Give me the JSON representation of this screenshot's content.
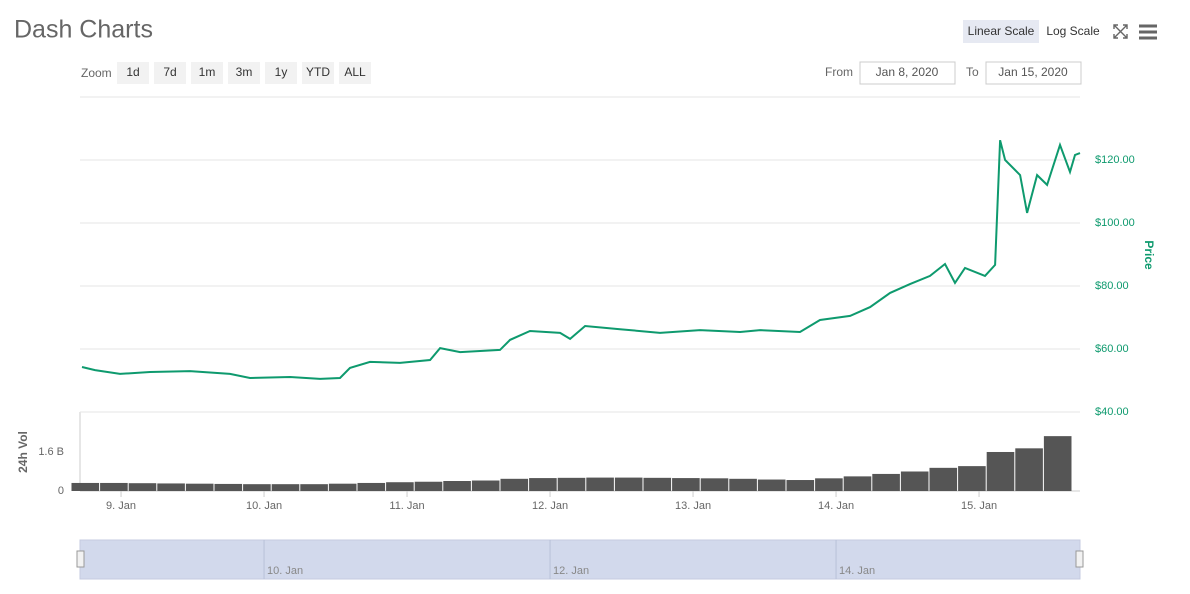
{
  "header": {
    "title": "Dash Charts",
    "scale_buttons": [
      "Linear Scale",
      "Log Scale"
    ]
  },
  "toolbar": {
    "zoom_label": "Zoom",
    "zoom_buttons": [
      "1d",
      "7d",
      "1m",
      "3m",
      "1y",
      "YTD",
      "ALL"
    ],
    "from_label": "From",
    "from_value": "Jan 8, 2020",
    "to_label": "To",
    "to_value": "Jan 15, 2020"
  },
  "chart_data": [
    {
      "type": "line",
      "y_label": "Price",
      "color": "#0e9a6e",
      "x": [
        8.727,
        8.818,
        8.993,
        9.203,
        9.482,
        9.762,
        9.902,
        10.182,
        10.392,
        10.531,
        10.601,
        10.741,
        10.951,
        11.161,
        11.231,
        11.371,
        11.65,
        11.72,
        11.86,
        12.07,
        12.14,
        12.245,
        12.489,
        12.769,
        13.049,
        13.329,
        13.469,
        13.748,
        13.888,
        14.098,
        14.238,
        14.378,
        14.517,
        14.657,
        14.762,
        14.832,
        14.902,
        15.042,
        15.112,
        15.147,
        15.182,
        15.287,
        15.336,
        15.406,
        15.476,
        15.566,
        15.636,
        15.671,
        15.706
      ],
      "values": [
        54.3,
        53.3,
        52.1,
        52.7,
        53,
        52.1,
        50.8,
        51.1,
        50.5,
        50.8,
        54,
        55.9,
        55.6,
        56.5,
        60.3,
        59,
        59.7,
        62.9,
        65.7,
        65.1,
        63.2,
        67.3,
        66.3,
        65.1,
        66,
        65.4,
        66,
        65.4,
        69.2,
        70.5,
        73.3,
        77.8,
        80.6,
        83.2,
        87,
        81,
        85.7,
        83.2,
        86.7,
        126.3,
        120,
        115.2,
        103.2,
        115.2,
        112.1,
        124.8,
        116.2,
        121.6,
        122.2
      ],
      "xlim": [
        8.713,
        15.706
      ],
      "ylim": [
        40,
        140
      ],
      "yticks": [
        {
          "value": 40,
          "label": "$40.00"
        },
        {
          "value": 60,
          "label": "$60.00"
        },
        {
          "value": 80,
          "label": "$80.00"
        },
        {
          "value": 100,
          "label": "$100.00"
        },
        {
          "value": 120,
          "label": "$120.00"
        }
      ],
      "grid": true
    },
    {
      "type": "bar",
      "y_label": "24h Vol",
      "color": "#555555",
      "x": [
        8.75,
        8.95,
        9.15,
        9.35,
        9.55,
        9.75,
        9.95,
        10.15,
        10.35,
        10.55,
        10.75,
        10.95,
        11.15,
        11.35,
        11.55,
        11.75,
        11.95,
        12.15,
        12.35,
        12.55,
        12.75,
        12.95,
        13.15,
        13.35,
        13.55,
        13.75,
        13.95,
        14.15,
        14.35,
        14.55,
        14.75,
        14.95,
        15.15,
        15.35,
        15.55
      ],
      "values": [
        0.33,
        0.33,
        0.32,
        0.31,
        0.3,
        0.29,
        0.28,
        0.28,
        0.28,
        0.3,
        0.33,
        0.36,
        0.38,
        0.41,
        0.43,
        0.5,
        0.53,
        0.54,
        0.55,
        0.55,
        0.54,
        0.53,
        0.52,
        0.5,
        0.47,
        0.45,
        0.52,
        0.6,
        0.7,
        0.8,
        0.95,
        1.02,
        1.6,
        1.75,
        2.25
      ],
      "bar_width": 0.2,
      "xlim": [
        8.713,
        15.706
      ],
      "ylim": [
        0,
        3.24
      ],
      "yticks": [
        0,
        {
          "value": 1.6,
          "label": "1.6 B"
        }
      ],
      "xticks": [
        {
          "value": 9,
          "label": "9. Jan"
        },
        {
          "value": 10,
          "label": "10. Jan"
        },
        {
          "value": 11,
          "label": "11. Jan"
        },
        {
          "value": 12,
          "label": "12. Jan"
        },
        {
          "value": 13,
          "label": "13. Jan"
        },
        {
          "value": 14,
          "label": "14. Jan"
        },
        {
          "value": 15,
          "label": "15. Jan"
        }
      ]
    }
  ],
  "navigator": {
    "xticks": [
      {
        "value": 10,
        "label": "10. Jan"
      },
      {
        "value": 12,
        "label": "12. Jan"
      },
      {
        "value": 14,
        "label": "14. Jan"
      }
    ]
  }
}
